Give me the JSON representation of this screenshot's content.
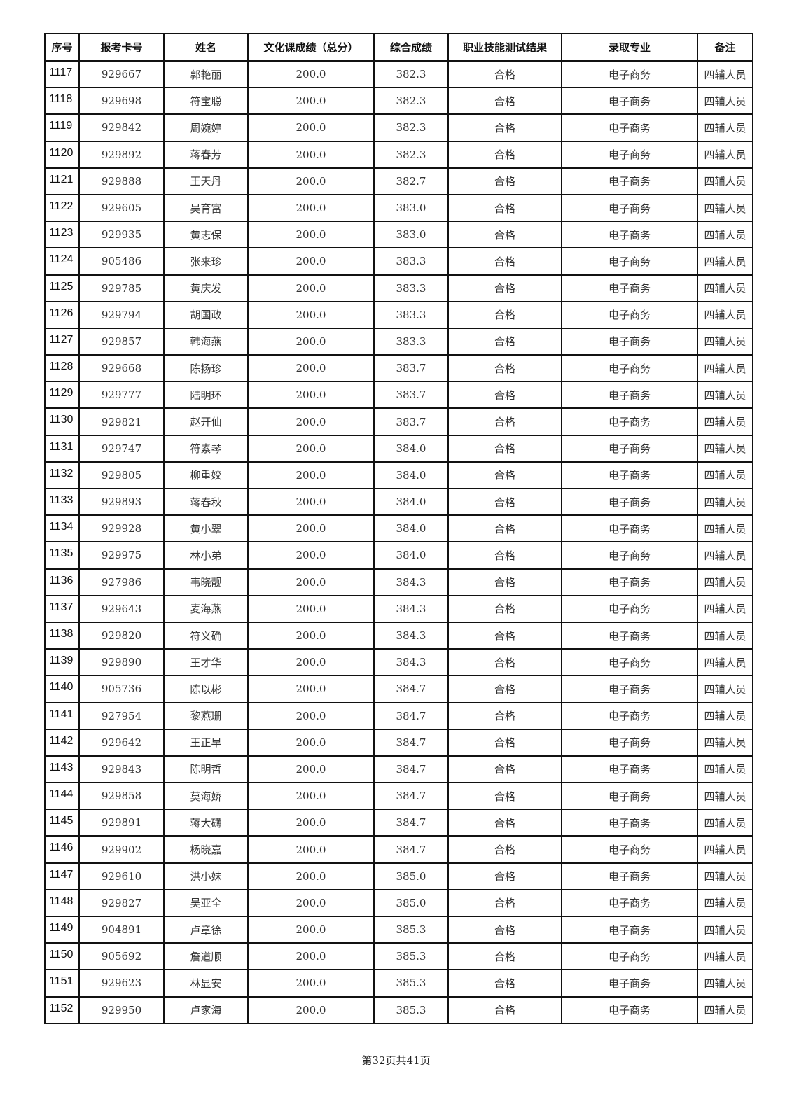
{
  "table": {
    "headers": [
      "序号",
      "报考卡号",
      "姓名",
      "文化课成绩（总分）",
      "综合成绩",
      "职业技能测试结果",
      "录取专业",
      "备注"
    ],
    "rows": [
      [
        "1117",
        "929667",
        "郭艳丽",
        "200.0",
        "382.3",
        "合格",
        "电子商务",
        "四辅人员"
      ],
      [
        "1118",
        "929698",
        "符宝聪",
        "200.0",
        "382.3",
        "合格",
        "电子商务",
        "四辅人员"
      ],
      [
        "1119",
        "929842",
        "周婉婷",
        "200.0",
        "382.3",
        "合格",
        "电子商务",
        "四辅人员"
      ],
      [
        "1120",
        "929892",
        "蒋春芳",
        "200.0",
        "382.3",
        "合格",
        "电子商务",
        "四辅人员"
      ],
      [
        "1121",
        "929888",
        "王天丹",
        "200.0",
        "382.7",
        "合格",
        "电子商务",
        "四辅人员"
      ],
      [
        "1122",
        "929605",
        "吴育富",
        "200.0",
        "383.0",
        "合格",
        "电子商务",
        "四辅人员"
      ],
      [
        "1123",
        "929935",
        "黄志保",
        "200.0",
        "383.0",
        "合格",
        "电子商务",
        "四辅人员"
      ],
      [
        "1124",
        "905486",
        "张来珍",
        "200.0",
        "383.3",
        "合格",
        "电子商务",
        "四辅人员"
      ],
      [
        "1125",
        "929785",
        "黄庆发",
        "200.0",
        "383.3",
        "合格",
        "电子商务",
        "四辅人员"
      ],
      [
        "1126",
        "929794",
        "胡国政",
        "200.0",
        "383.3",
        "合格",
        "电子商务",
        "四辅人员"
      ],
      [
        "1127",
        "929857",
        "韩海燕",
        "200.0",
        "383.3",
        "合格",
        "电子商务",
        "四辅人员"
      ],
      [
        "1128",
        "929668",
        "陈扬珍",
        "200.0",
        "383.7",
        "合格",
        "电子商务",
        "四辅人员"
      ],
      [
        "1129",
        "929777",
        "陆明环",
        "200.0",
        "383.7",
        "合格",
        "电子商务",
        "四辅人员"
      ],
      [
        "1130",
        "929821",
        "赵开仙",
        "200.0",
        "383.7",
        "合格",
        "电子商务",
        "四辅人员"
      ],
      [
        "1131",
        "929747",
        "符素琴",
        "200.0",
        "384.0",
        "合格",
        "电子商务",
        "四辅人员"
      ],
      [
        "1132",
        "929805",
        "柳重姣",
        "200.0",
        "384.0",
        "合格",
        "电子商务",
        "四辅人员"
      ],
      [
        "1133",
        "929893",
        "蒋春秋",
        "200.0",
        "384.0",
        "合格",
        "电子商务",
        "四辅人员"
      ],
      [
        "1134",
        "929928",
        "黄小翠",
        "200.0",
        "384.0",
        "合格",
        "电子商务",
        "四辅人员"
      ],
      [
        "1135",
        "929975",
        "林小弟",
        "200.0",
        "384.0",
        "合格",
        "电子商务",
        "四辅人员"
      ],
      [
        "1136",
        "927986",
        "韦晓靓",
        "200.0",
        "384.3",
        "合格",
        "电子商务",
        "四辅人员"
      ],
      [
        "1137",
        "929643",
        "麦海燕",
        "200.0",
        "384.3",
        "合格",
        "电子商务",
        "四辅人员"
      ],
      [
        "1138",
        "929820",
        "符义确",
        "200.0",
        "384.3",
        "合格",
        "电子商务",
        "四辅人员"
      ],
      [
        "1139",
        "929890",
        "王才华",
        "200.0",
        "384.3",
        "合格",
        "电子商务",
        "四辅人员"
      ],
      [
        "1140",
        "905736",
        "陈以彬",
        "200.0",
        "384.7",
        "合格",
        "电子商务",
        "四辅人员"
      ],
      [
        "1141",
        "927954",
        "黎燕珊",
        "200.0",
        "384.7",
        "合格",
        "电子商务",
        "四辅人员"
      ],
      [
        "1142",
        "929642",
        "王正早",
        "200.0",
        "384.7",
        "合格",
        "电子商务",
        "四辅人员"
      ],
      [
        "1143",
        "929843",
        "陈明哲",
        "200.0",
        "384.7",
        "合格",
        "电子商务",
        "四辅人员"
      ],
      [
        "1144",
        "929858",
        "莫海娇",
        "200.0",
        "384.7",
        "合格",
        "电子商务",
        "四辅人员"
      ],
      [
        "1145",
        "929891",
        "蒋大礴",
        "200.0",
        "384.7",
        "合格",
        "电子商务",
        "四辅人员"
      ],
      [
        "1146",
        "929902",
        "杨晓嘉",
        "200.0",
        "384.7",
        "合格",
        "电子商务",
        "四辅人员"
      ],
      [
        "1147",
        "929610",
        "洪小妹",
        "200.0",
        "385.0",
        "合格",
        "电子商务",
        "四辅人员"
      ],
      [
        "1148",
        "929827",
        "吴亚全",
        "200.0",
        "385.0",
        "合格",
        "电子商务",
        "四辅人员"
      ],
      [
        "1149",
        "904891",
        "卢章徐",
        "200.0",
        "385.3",
        "合格",
        "电子商务",
        "四辅人员"
      ],
      [
        "1150",
        "905692",
        "詹道顺",
        "200.0",
        "385.3",
        "合格",
        "电子商务",
        "四辅人员"
      ],
      [
        "1151",
        "929623",
        "林显安",
        "200.0",
        "385.3",
        "合格",
        "电子商务",
        "四辅人员"
      ],
      [
        "1152",
        "929950",
        "卢家海",
        "200.0",
        "385.3",
        "合格",
        "电子商务",
        "四辅人员"
      ]
    ]
  },
  "footer": {
    "page_text": "第32页共41页"
  }
}
